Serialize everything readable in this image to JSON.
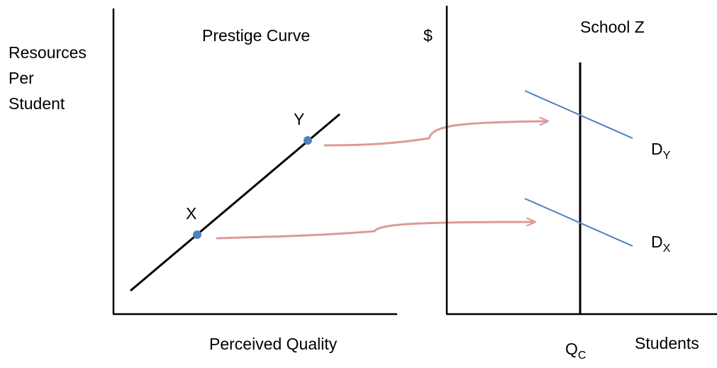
{
  "left_panel": {
    "title": "Prestige Curve",
    "y_axis_label_lines": [
      "Resources",
      "Per",
      "Student"
    ],
    "x_axis_label": "Perceived Quality",
    "point_x_label": "X",
    "point_y_label": "Y"
  },
  "right_panel": {
    "title": "School Z",
    "y_axis_label": "$",
    "x_axis_label": "Students",
    "capacity_label": {
      "main": "Q",
      "sub": "C"
    },
    "demand_high_label": {
      "main": "D",
      "sub": "Y"
    },
    "demand_low_label": {
      "main": "D",
      "sub": "X"
    }
  },
  "colors": {
    "axis": "#000000",
    "prestige_curve": "#000000",
    "points": "#4f81bd",
    "demand_lines": "#4f81bd",
    "arrows": "#dd9a9a"
  }
}
